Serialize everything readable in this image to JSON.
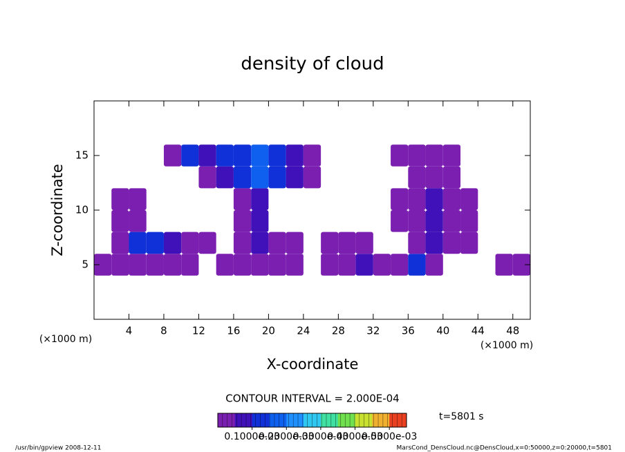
{
  "chart_data": {
    "type": "contour",
    "title": "density of cloud",
    "x_label": "X-coordinate",
    "y_label": "Z-coordinate",
    "x_unit": "(×1000 m)",
    "y_unit": "(×1000 m)",
    "xlim": [
      0,
      50
    ],
    "ylim": [
      0,
      20
    ],
    "xticks": [
      4,
      8,
      12,
      16,
      20,
      24,
      28,
      32,
      36,
      40,
      44,
      48
    ],
    "yticks": [
      5,
      10,
      15
    ],
    "x": [
      1,
      3,
      5,
      7,
      9,
      11,
      13,
      15,
      17,
      19,
      21,
      23,
      25,
      27,
      29,
      31,
      33,
      35,
      37,
      39,
      41,
      43,
      45,
      47,
      49
    ],
    "y": [
      1,
      3,
      5,
      7,
      9,
      11,
      13,
      15,
      17,
      19
    ],
    "values": [
      [
        null,
        null,
        null,
        null,
        null,
        null,
        null,
        null,
        null,
        null,
        null,
        null,
        null,
        null,
        null,
        null,
        null,
        null,
        null,
        null,
        null,
        null,
        null,
        null,
        null
      ],
      [
        null,
        null,
        null,
        null,
        null,
        null,
        null,
        null,
        null,
        null,
        null,
        null,
        null,
        null,
        null,
        null,
        null,
        null,
        null,
        null,
        null,
        null,
        null,
        null,
        null
      ],
      [
        3e-05,
        3e-05,
        3e-05,
        3e-05,
        3e-05,
        3e-05,
        null,
        3e-05,
        3e-05,
        3e-05,
        3e-05,
        3e-05,
        null,
        3e-05,
        3e-05,
        7e-05,
        3e-05,
        3e-05,
        0.00012,
        3e-05,
        null,
        null,
        null,
        3e-05,
        3e-05
      ],
      [
        null,
        3e-05,
        0.00012,
        0.00012,
        7e-05,
        3e-05,
        3e-05,
        null,
        3e-05,
        7e-05,
        3e-05,
        3e-05,
        null,
        3e-05,
        3e-05,
        3e-05,
        null,
        null,
        3e-05,
        7e-05,
        3e-05,
        3e-05,
        null,
        null,
        null
      ],
      [
        null,
        3e-05,
        3e-05,
        null,
        null,
        null,
        null,
        null,
        3e-05,
        7e-05,
        null,
        null,
        null,
        null,
        null,
        null,
        null,
        3e-05,
        3e-05,
        7e-05,
        3e-05,
        3e-05,
        null,
        null,
        null
      ],
      [
        null,
        3e-05,
        3e-05,
        null,
        null,
        null,
        null,
        null,
        3e-05,
        7e-05,
        null,
        null,
        null,
        null,
        null,
        null,
        null,
        3e-05,
        3e-05,
        7e-05,
        3e-05,
        3e-05,
        null,
        null,
        null
      ],
      [
        null,
        null,
        null,
        null,
        null,
        null,
        3e-05,
        7e-05,
        0.00012,
        0.00017,
        0.00012,
        7e-05,
        3e-05,
        null,
        null,
        null,
        null,
        null,
        3e-05,
        3e-05,
        3e-05,
        null,
        null,
        null,
        null
      ],
      [
        null,
        null,
        null,
        null,
        3e-05,
        0.00012,
        7e-05,
        0.00012,
        0.00012,
        0.00017,
        0.00012,
        7e-05,
        3e-05,
        null,
        null,
        null,
        null,
        3e-05,
        3e-05,
        3e-05,
        3e-05,
        null,
        null,
        null,
        null
      ],
      [
        null,
        null,
        null,
        null,
        null,
        null,
        null,
        null,
        null,
        null,
        null,
        null,
        null,
        null,
        null,
        null,
        null,
        null,
        null,
        null,
        null,
        null,
        null,
        null,
        null
      ],
      [
        null,
        null,
        null,
        null,
        null,
        null,
        null,
        null,
        null,
        null,
        null,
        null,
        null,
        null,
        null,
        null,
        null,
        null,
        null,
        null,
        null,
        null,
        null,
        null,
        null
      ]
    ],
    "colors": [
      "#7a1fb0",
      "#4010b8",
      "#1030d8",
      "#1060f0",
      "#2090ff",
      "#30c8f0",
      "#40e0a0",
      "#70e050",
      "#c8e030",
      "#f0b030",
      "#e84020"
    ],
    "clim": [
      0,
      0.00055
    ],
    "colorbar_ticks": [
      {
        "value": 0.0001,
        "label": "0.1000e-03"
      },
      {
        "value": 0.0002,
        "label": "0.2000e-03"
      },
      {
        "value": 0.0003,
        "label": "0.3000e-03"
      },
      {
        "value": 0.0004,
        "label": "0.4000e-03"
      },
      {
        "value": 0.0005,
        "label": "0.5000e-03"
      }
    ],
    "contour_interval": "CONTOUR INTERVAL = 2.000E-04",
    "time_label": "t=5801 s",
    "footer_left": "/usr/bin/gpview  2008-12-11",
    "footer_right": "MarsCond_DensCloud.nc@DensCloud,x=0:50000,z=0:20000,t=5801"
  }
}
